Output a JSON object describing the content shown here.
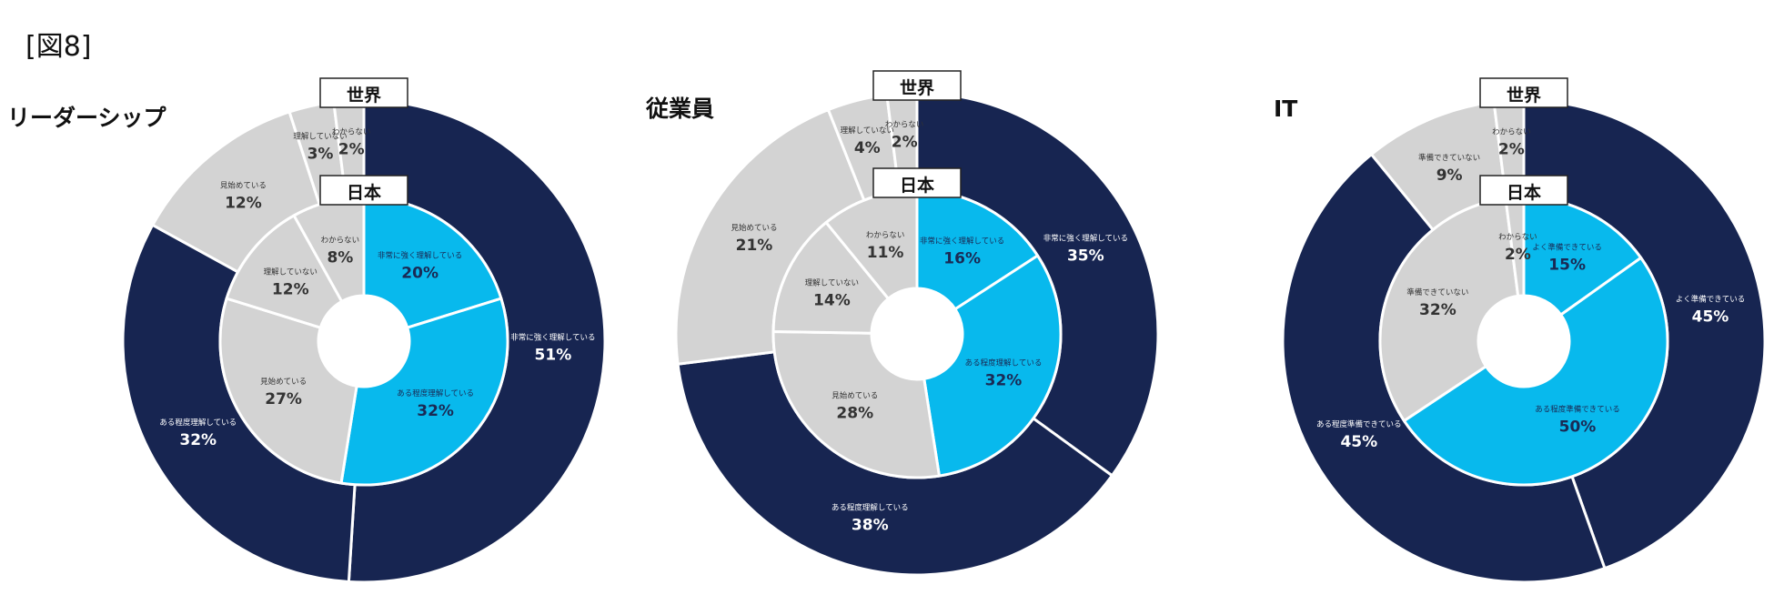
{
  "figure_label": "[図8]",
  "ring_labels": {
    "outer": "世界",
    "inner": "日本"
  },
  "colors": {
    "dark": "#172551",
    "blue": "#08b9ed",
    "gray": "#d3d3d3",
    "edge": "#ffffff",
    "text_light": "#ffffff",
    "text_dark": "#333333"
  },
  "chart_data": [
    {
      "type": "pie",
      "title": "リーダーシップ",
      "outer": [
        {
          "label": "非常に強く理解している",
          "value": 51,
          "display": "51%",
          "color": "dark"
        },
        {
          "label": "ある程度理解している",
          "value": 32,
          "display": "32%",
          "color": "dark"
        },
        {
          "label": "見始めている",
          "value": 12,
          "display": "12%",
          "color": "gray"
        },
        {
          "label": "理解していない",
          "value": 3,
          "display": "3%",
          "color": "gray"
        },
        {
          "label": "わからない",
          "value": 2,
          "display": "2%",
          "color": "gray"
        }
      ],
      "inner": [
        {
          "label": "非常に強く理解している",
          "value": 20,
          "display": "20%",
          "color": "blue"
        },
        {
          "label": "ある程度理解している",
          "value": 32,
          "display": "32%",
          "color": "blue"
        },
        {
          "label": "見始めている",
          "value": 27,
          "display": "27%",
          "color": "gray"
        },
        {
          "label": "理解していない",
          "value": 12,
          "display": "12%",
          "color": "gray"
        },
        {
          "label": "わからない",
          "value": 8,
          "display": "8%",
          "color": "gray"
        }
      ]
    },
    {
      "type": "pie",
      "title": "従業員",
      "outer": [
        {
          "label": "非常に強く理解している",
          "value": 35,
          "display": "35%",
          "color": "dark"
        },
        {
          "label": "ある程度理解している",
          "value": 38,
          "display": "38%",
          "color": "dark"
        },
        {
          "label": "見始めている",
          "value": 21,
          "display": "21%",
          "color": "gray"
        },
        {
          "label": "理解していない",
          "value": 4,
          "display": "4%",
          "color": "gray"
        },
        {
          "label": "わからない",
          "value": 2,
          "display": "2%",
          "color": "gray"
        }
      ],
      "inner": [
        {
          "label": "非常に強く理解している",
          "value": 16,
          "display": "16%",
          "color": "blue"
        },
        {
          "label": "ある程度理解している",
          "value": 32,
          "display": "32%",
          "color": "blue"
        },
        {
          "label": "見始めている",
          "value": 28,
          "display": "28%",
          "color": "gray"
        },
        {
          "label": "理解していない",
          "value": 14,
          "display": "14%",
          "color": "gray"
        },
        {
          "label": "わからない",
          "value": 11,
          "display": "11%",
          "color": "gray"
        }
      ]
    },
    {
      "type": "pie",
      "title": "IT",
      "outer": [
        {
          "label": "よく準備できている",
          "value": 45,
          "display": "45%",
          "color": "dark"
        },
        {
          "label": "ある程度準備できている",
          "value": 45,
          "display": "45%",
          "color": "dark"
        },
        {
          "label": "準備できていない",
          "value": 9,
          "display": "9%",
          "color": "gray"
        },
        {
          "label": "わからない",
          "value": 2,
          "display": "2%",
          "color": "gray"
        }
      ],
      "inner": [
        {
          "label": "よく準備できている",
          "value": 15,
          "display": "15%",
          "color": "blue"
        },
        {
          "label": "ある程度準備できている",
          "value": 50,
          "display": "50%",
          "color": "blue"
        },
        {
          "label": "準備できていない",
          "value": 32,
          "display": "32%",
          "color": "gray"
        },
        {
          "label": "わからない",
          "value": 2,
          "display": "2%",
          "color": "gray"
        }
      ]
    }
  ]
}
